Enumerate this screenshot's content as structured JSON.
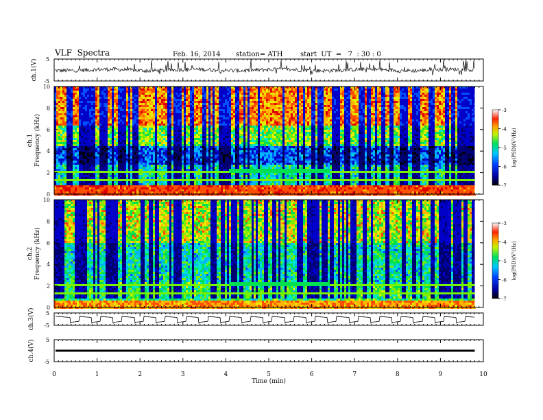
{
  "header": {
    "title": "VLF  Spectra",
    "date": "Feb. 16, 2014",
    "station": "station= ATH",
    "start_ut": "start  UT  =   7  : 30 : 0"
  },
  "chart_data": [
    {
      "type": "line",
      "panel": "ch1",
      "ylabel": "ch.1(V)",
      "ylim": [
        -5,
        5
      ],
      "yticks": [
        "5",
        "-5"
      ],
      "description_values": "noisy waveform around 0 V with spikes",
      "color": "#000000"
    },
    {
      "type": "heatmap",
      "panel": "ch1-spectrogram",
      "ylabel_line1": "ch.1",
      "ylabel_line2": "Frequency (kHz)",
      "ylim": [
        0,
        10
      ],
      "yticks": [
        "0",
        "2",
        "4",
        "6",
        "8",
        "10"
      ],
      "colorbar": {
        "label": "log(PSD)(V²/Hz)",
        "range": [
          -7,
          -3
        ],
        "ticks": [
          "-3",
          "-4",
          "-5",
          "-6",
          "-7"
        ]
      }
    },
    {
      "type": "heatmap",
      "panel": "ch2-spectrogram",
      "ylabel_line1": "ch.2",
      "ylabel_line2": "Frequency (kHz)",
      "ylim": [
        0,
        10
      ],
      "yticks": [
        "0",
        "2",
        "4",
        "6",
        "8",
        "10"
      ],
      "colorbar": {
        "label": "log(PSD)(V²/Hz)",
        "range": [
          -7,
          -3
        ],
        "ticks": [
          "-3",
          "-4",
          "-5",
          "-6",
          "-7"
        ]
      }
    },
    {
      "type": "line",
      "panel": "ch3",
      "ylabel": "ch.3(V)",
      "ylim": [
        -5,
        5
      ],
      "yticks": [
        "5",
        "-5"
      ],
      "color": "#000000"
    },
    {
      "type": "line",
      "panel": "ch4",
      "ylabel": "ch.4(V)",
      "ylim": [
        -5,
        5
      ],
      "yticks": [
        "5",
        "-5"
      ],
      "values_constant": 0,
      "color": "#000000"
    }
  ],
  "x_axis": {
    "xlabel": "Time  (min)",
    "xlim": [
      0,
      10
    ],
    "ticks": [
      "0",
      "1",
      "2",
      "3",
      "4",
      "5",
      "6",
      "7",
      "8",
      "9",
      "10"
    ],
    "data_end": 9.8
  }
}
